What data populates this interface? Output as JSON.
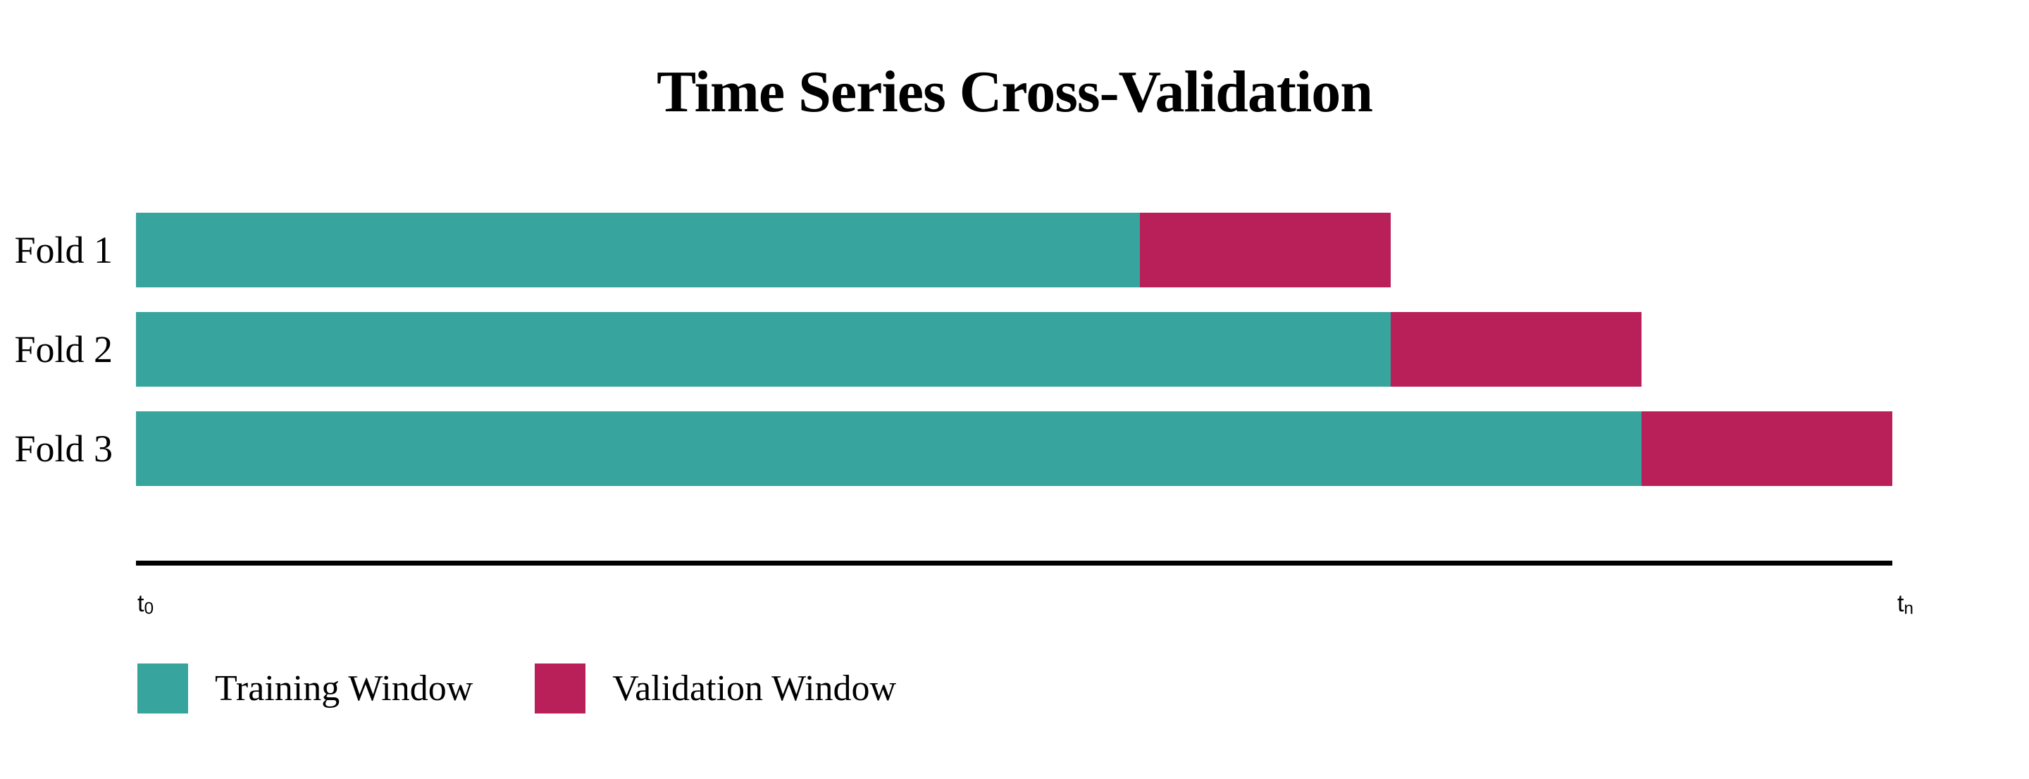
{
  "chart_data": {
    "type": "bar",
    "orientation": "horizontal",
    "title": "Time Series Cross-Validation",
    "categories": [
      "Fold 1",
      "Fold 2",
      "Fold 3"
    ],
    "series": [
      {
        "name": "Training Window",
        "color": "#38A49E",
        "values": [
          0.5714,
          0.7143,
          0.8571
        ]
      },
      {
        "name": "Validation Window",
        "color": "#B91F58",
        "values": [
          0.1429,
          0.1429,
          0.1429
        ]
      }
    ],
    "x_axis": {
      "range": [
        0,
        1
      ],
      "grid": false,
      "start_tick": {
        "base": "t",
        "sub": "0"
      },
      "end_tick": {
        "base": "t",
        "sub": "n"
      }
    },
    "legend_position": "bottom-left",
    "layout_hint": "expanding training window, each validation window spans 1/7 of the timeline"
  },
  "colors": {
    "training": "#38A49E",
    "validation": "#B91F58",
    "axis": "#000000",
    "text": "#000000",
    "background": "#FFFFFF"
  }
}
